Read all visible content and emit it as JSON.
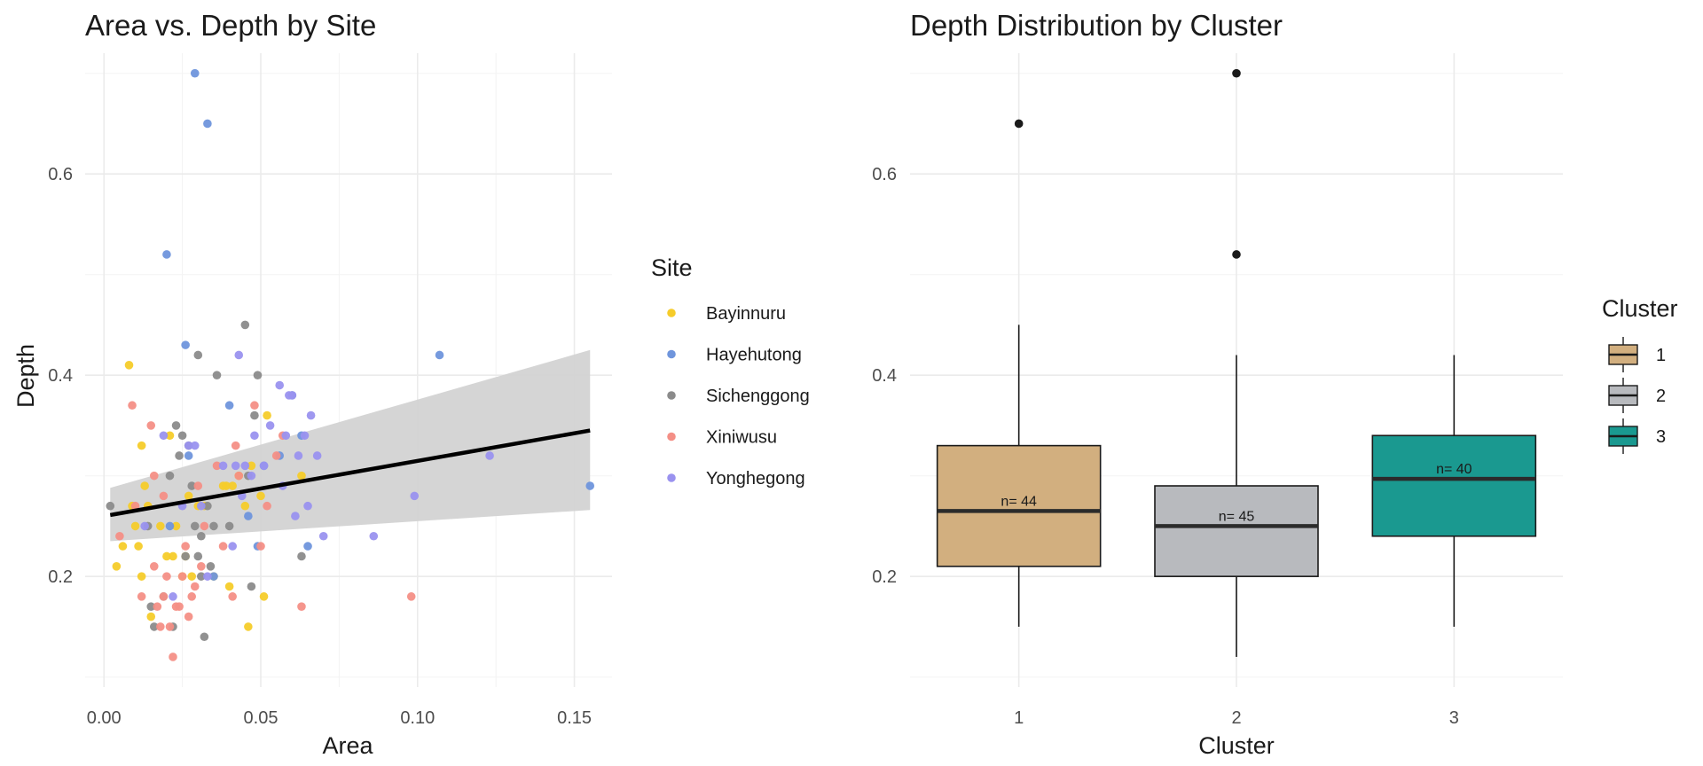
{
  "chart_data": [
    {
      "type": "scatter",
      "title": "Area vs. Depth by Site",
      "xlabel": "Area",
      "ylabel": "Depth",
      "xlim": [
        -0.006,
        0.162
      ],
      "ylim": [
        0.09,
        0.72
      ],
      "x_ticks": [
        0.0,
        0.05,
        0.1,
        0.15
      ],
      "x_tick_labels": [
        "0.00",
        "0.05",
        "0.10",
        "0.15"
      ],
      "y_ticks": [
        0.2,
        0.4,
        0.6
      ],
      "y_tick_labels": [
        "0.2",
        "0.4",
        "0.6"
      ],
      "grid": true,
      "legend": {
        "title": "Site",
        "position": "right"
      },
      "series": [
        {
          "name": "Bayinnuru",
          "color": "#f6cc2a",
          "x": [
            0.004,
            0.006,
            0.008,
            0.009,
            0.01,
            0.011,
            0.012,
            0.012,
            0.013,
            0.014,
            0.015,
            0.018,
            0.02,
            0.021,
            0.022,
            0.023,
            0.025,
            0.026,
            0.027,
            0.028,
            0.03,
            0.032,
            0.035,
            0.038,
            0.039,
            0.04,
            0.041,
            0.043,
            0.045,
            0.046,
            0.047,
            0.05,
            0.051,
            0.052,
            0.063
          ],
          "y": [
            0.21,
            0.23,
            0.41,
            0.27,
            0.25,
            0.23,
            0.33,
            0.2,
            0.29,
            0.27,
            0.16,
            0.25,
            0.22,
            0.34,
            0.22,
            0.25,
            0.2,
            0.22,
            0.28,
            0.2,
            0.27,
            0.27,
            0.2,
            0.29,
            0.29,
            0.19,
            0.29,
            0.3,
            0.27,
            0.15,
            0.31,
            0.28,
            0.18,
            0.36,
            0.3
          ]
        },
        {
          "name": "Hayehutong",
          "color": "#6f95dc",
          "x": [
            0.02,
            0.021,
            0.026,
            0.027,
            0.029,
            0.033,
            0.035,
            0.04,
            0.046,
            0.049,
            0.051,
            0.056,
            0.06,
            0.063,
            0.065,
            0.107,
            0.155
          ],
          "y": [
            0.52,
            0.25,
            0.43,
            0.32,
            0.7,
            0.65,
            0.2,
            0.37,
            0.26,
            0.23,
            0.31,
            0.32,
            0.38,
            0.34,
            0.23,
            0.42,
            0.29
          ]
        },
        {
          "name": "Sichenggong",
          "color": "#8b8b8b",
          "x": [
            0.002,
            0.014,
            0.015,
            0.016,
            0.019,
            0.021,
            0.022,
            0.023,
            0.024,
            0.025,
            0.026,
            0.027,
            0.028,
            0.029,
            0.03,
            0.03,
            0.031,
            0.031,
            0.032,
            0.033,
            0.034,
            0.035,
            0.036,
            0.04,
            0.045,
            0.046,
            0.047,
            0.048,
            0.049,
            0.063
          ],
          "y": [
            0.27,
            0.25,
            0.17,
            0.15,
            0.18,
            0.3,
            0.15,
            0.35,
            0.32,
            0.34,
            0.22,
            0.33,
            0.29,
            0.25,
            0.22,
            0.42,
            0.24,
            0.2,
            0.14,
            0.27,
            0.21,
            0.25,
            0.4,
            0.25,
            0.45,
            0.3,
            0.19,
            0.36,
            0.4,
            0.22
          ]
        },
        {
          "name": "Xiniwusu",
          "color": "#f48f86",
          "x": [
            0.005,
            0.009,
            0.01,
            0.012,
            0.015,
            0.016,
            0.016,
            0.017,
            0.018,
            0.019,
            0.019,
            0.02,
            0.021,
            0.022,
            0.023,
            0.024,
            0.025,
            0.026,
            0.027,
            0.028,
            0.029,
            0.03,
            0.031,
            0.032,
            0.036,
            0.038,
            0.041,
            0.042,
            0.043,
            0.048,
            0.05,
            0.052,
            0.055,
            0.057,
            0.063,
            0.098
          ],
          "y": [
            0.24,
            0.37,
            0.27,
            0.18,
            0.35,
            0.3,
            0.21,
            0.17,
            0.15,
            0.28,
            0.18,
            0.2,
            0.15,
            0.12,
            0.17,
            0.17,
            0.2,
            0.23,
            0.16,
            0.18,
            0.19,
            0.29,
            0.21,
            0.25,
            0.31,
            0.23,
            0.18,
            0.33,
            0.3,
            0.37,
            0.23,
            0.27,
            0.32,
            0.34,
            0.17,
            0.18
          ]
        },
        {
          "name": "Yonghegong",
          "color": "#9a92ef",
          "x": [
            0.013,
            0.019,
            0.022,
            0.025,
            0.027,
            0.029,
            0.031,
            0.033,
            0.038,
            0.041,
            0.042,
            0.043,
            0.044,
            0.045,
            0.047,
            0.048,
            0.051,
            0.053,
            0.056,
            0.057,
            0.058,
            0.059,
            0.06,
            0.061,
            0.062,
            0.064,
            0.065,
            0.066,
            0.068,
            0.07,
            0.086,
            0.099,
            0.123
          ],
          "y": [
            0.25,
            0.34,
            0.18,
            0.27,
            0.33,
            0.33,
            0.27,
            0.2,
            0.31,
            0.23,
            0.31,
            0.42,
            0.28,
            0.31,
            0.3,
            0.34,
            0.31,
            0.35,
            0.39,
            0.29,
            0.34,
            0.38,
            0.38,
            0.26,
            0.32,
            0.34,
            0.27,
            0.36,
            0.32,
            0.24,
            0.24,
            0.28,
            0.32
          ]
        }
      ],
      "trend_line": {
        "type": "linear",
        "color": "#000000",
        "band_color": "#d3d3d3",
        "x": [
          0.002,
          0.155
        ],
        "y": [
          0.261,
          0.345
        ],
        "ci_lower": [
          0.235,
          0.266
        ],
        "ci_upper": [
          0.288,
          0.425
        ]
      }
    },
    {
      "type": "box",
      "title": "Depth Distribution by Cluster",
      "xlabel": "Cluster",
      "ylabel": "",
      "ylim": [
        0.09,
        0.72
      ],
      "y_ticks": [
        0.2,
        0.4,
        0.6
      ],
      "y_tick_labels": [
        "0.2",
        "0.4",
        "0.6"
      ],
      "categories": [
        "1",
        "2",
        "3"
      ],
      "grid": true,
      "legend": {
        "title": "Cluster",
        "position": "right"
      },
      "boxes": [
        {
          "name": "1",
          "color": "#d2af7f",
          "whisker_low": 0.15,
          "q1": 0.21,
          "median": 0.265,
          "q3": 0.33,
          "whisker_high": 0.45,
          "outliers": [
            0.65
          ],
          "n_label": "n= 44"
        },
        {
          "name": "2",
          "color": "#b8babe",
          "whisker_low": 0.12,
          "q1": 0.2,
          "median": 0.25,
          "q3": 0.29,
          "whisker_high": 0.42,
          "outliers": [
            0.52,
            0.7
          ],
          "n_label": "n= 45"
        },
        {
          "name": "3",
          "color": "#1a9990",
          "whisker_low": 0.15,
          "q1": 0.24,
          "median": 0.297,
          "q3": 0.34,
          "whisker_high": 0.42,
          "outliers": [],
          "n_label": "n= 40"
        }
      ]
    }
  ]
}
